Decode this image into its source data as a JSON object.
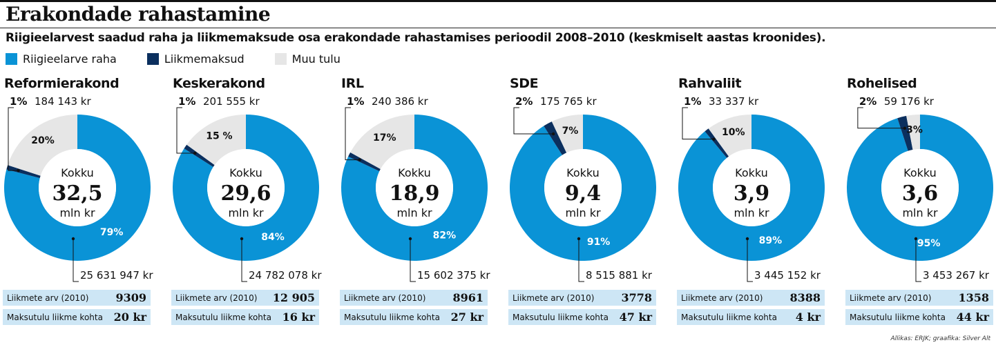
{
  "title": "Erakondade rahastamine",
  "subtitle": "Riigieelarvest saadud raha ja liikmemaksude osa erakondade rahastamises perioodil 2008–2010 (keskmiselt aastas kroonides).",
  "colors": {
    "state": "#0a93d6",
    "members": "#0b2f5e",
    "other": "#e6e6e6",
    "stats_bg": "#cde6f5"
  },
  "legend": [
    {
      "label": "Riigieelarve raha",
      "color": "#0a93d6"
    },
    {
      "label": "Liikmemaksud",
      "color": "#0b2f5e"
    },
    {
      "label": "Muu tulu",
      "color": "#e6e6e6"
    }
  ],
  "center": {
    "top": "Kokku",
    "unit": "mln kr"
  },
  "stats_labels": {
    "members": "Liikmete arv (2010)",
    "fee": "Maksutulu liikme kohta"
  },
  "chart_data": {
    "type": "pie",
    "title": "Erakondade rahastamine",
    "series_names": [
      "Riigieelarve raha",
      "Liikmemaksud",
      "Muu tulu"
    ],
    "parties": [
      {
        "name": "Reformierakond",
        "total": "32,5",
        "state_pct": 79,
        "members_pct": 1,
        "other_pct": 20,
        "state_label": "79%",
        "members_label": "1%",
        "other_label": "20%",
        "state_amount": "25 631 947 kr",
        "members_amount": "184 143 kr",
        "member_count": "9309",
        "fee_per_member": "20 kr"
      },
      {
        "name": "Keskerakond",
        "total": "29,6",
        "state_pct": 84,
        "members_pct": 1,
        "other_pct": 15,
        "state_label": "84%",
        "members_label": "1%",
        "other_label": "15 %",
        "state_amount": "24 782 078 kr",
        "members_amount": "201 555 kr",
        "member_count": "12 905",
        "fee_per_member": "16 kr"
      },
      {
        "name": "IRL",
        "total": "18,9",
        "state_pct": 82,
        "members_pct": 1,
        "other_pct": 17,
        "state_label": "82%",
        "members_label": "1%",
        "other_label": "17%",
        "state_amount": "15 602 375 kr",
        "members_amount": "240 386 kr",
        "member_count": "8961",
        "fee_per_member": "27 kr"
      },
      {
        "name": "SDE",
        "total": "9,4",
        "state_pct": 91,
        "members_pct": 2,
        "other_pct": 7,
        "state_label": "91%",
        "members_label": "2%",
        "other_label": "7%",
        "state_amount": "8 515 881 kr",
        "members_amount": "175 765 kr",
        "member_count": "3778",
        "fee_per_member": "47 kr"
      },
      {
        "name": "Rahvaliit",
        "total": "3,9",
        "state_pct": 89,
        "members_pct": 1,
        "other_pct": 10,
        "state_label": "89%",
        "members_label": "1%",
        "other_label": "10%",
        "state_amount": "3 445 152 kr",
        "members_amount": "33 337 kr",
        "member_count": "8388",
        "fee_per_member": "4 kr"
      },
      {
        "name": "Rohelised",
        "total": "3,6",
        "state_pct": 95,
        "members_pct": 2,
        "other_pct": 3,
        "state_label": "95%",
        "members_label": "2%",
        "other_label": "3%",
        "state_amount": "3 453 267 kr",
        "members_amount": "59 176 kr",
        "member_count": "1358",
        "fee_per_member": "44 kr"
      }
    ]
  },
  "credit": "Allikas: ERJK; graafika: Silver Alt"
}
